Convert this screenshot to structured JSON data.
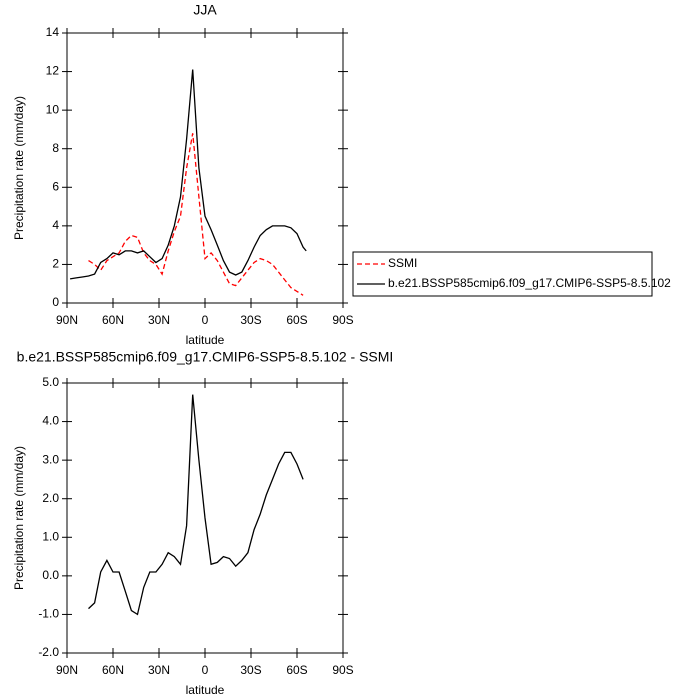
{
  "chart_data": [
    {
      "type": "line",
      "title": "JJA",
      "xlabel": "latitude",
      "ylabel": "Precipitation rate (mm/day)",
      "x": [
        88,
        84,
        80,
        76,
        72,
        68,
        64,
        60,
        56,
        52,
        48,
        44,
        40,
        36,
        32,
        28,
        24,
        20,
        16,
        12,
        8,
        4,
        0,
        -4,
        -8,
        -12,
        -16,
        -20,
        -24,
        -28,
        -32,
        -36,
        -40,
        -44,
        -48,
        -52,
        -56,
        -60,
        -64,
        -66
      ],
      "xlim": [
        90,
        -90
      ],
      "xticks": [
        {
          "value": 90,
          "label": "90N"
        },
        {
          "value": 60,
          "label": "60N"
        },
        {
          "value": 30,
          "label": "30N"
        },
        0,
        {
          "value": -30,
          "label": "30S"
        },
        {
          "value": -60,
          "label": "60S"
        },
        {
          "value": -90,
          "label": "90S"
        }
      ],
      "ylim": [
        0,
        14
      ],
      "yticks": [
        0,
        2,
        4,
        6,
        8,
        10,
        12,
        14
      ],
      "legend": "outside-right",
      "series": [
        {
          "name": "SSMI",
          "color": "#ff0000",
          "style": "dashed",
          "values": [
            null,
            null,
            null,
            2.2,
            2.0,
            1.7,
            2.2,
            2.4,
            2.6,
            3.2,
            3.5,
            3.4,
            2.6,
            2.2,
            2.0,
            1.5,
            2.7,
            3.7,
            4.5,
            7.0,
            8.8,
            5.5,
            2.3,
            2.6,
            2.2,
            1.6,
            1.0,
            0.9,
            1.3,
            1.7,
            2.1,
            2.3,
            2.2,
            2.0,
            1.6,
            1.2,
            0.8,
            0.6,
            0.4,
            null
          ]
        },
        {
          "name": "b.e21.BSSP585cmip6.f09_g17.CMIP6-SSP5-8.5.102",
          "color": "#000000",
          "style": "solid",
          "values": [
            1.25,
            1.3,
            1.35,
            1.4,
            1.5,
            2.1,
            2.3,
            2.6,
            2.5,
            2.7,
            2.7,
            2.6,
            2.7,
            2.4,
            2.1,
            2.3,
            3.0,
            4.0,
            5.5,
            8.5,
            12.1,
            7.0,
            4.5,
            3.8,
            3.0,
            2.2,
            1.6,
            1.45,
            1.6,
            2.2,
            2.9,
            3.5,
            3.8,
            4.0,
            4.0,
            4.0,
            3.9,
            3.6,
            2.9,
            2.7
          ]
        }
      ]
    },
    {
      "type": "line",
      "title": "b.e21.BSSP585cmip6.f09_g17.CMIP6-SSP5-8.5.102 - SSMI",
      "xlabel": "latitude",
      "ylabel": "Precipitation rate (mm/day)",
      "x": [
        88,
        84,
        80,
        76,
        72,
        68,
        64,
        60,
        56,
        52,
        48,
        44,
        40,
        36,
        32,
        28,
        24,
        20,
        16,
        12,
        8,
        4,
        0,
        -4,
        -8,
        -12,
        -16,
        -20,
        -24,
        -28,
        -32,
        -36,
        -40,
        -44,
        -48,
        -52,
        -56,
        -60,
        -64,
        -66
      ],
      "xlim": [
        90,
        -90
      ],
      "xticks": [
        {
          "value": 90,
          "label": "90N"
        },
        {
          "value": 60,
          "label": "60N"
        },
        {
          "value": 30,
          "label": "30N"
        },
        0,
        {
          "value": -30,
          "label": "30S"
        },
        {
          "value": -60,
          "label": "60S"
        },
        {
          "value": -90,
          "label": "90S"
        }
      ],
      "ylim": [
        -2,
        5
      ],
      "yticks": [
        {
          "value": -2,
          "label": "-2.0"
        },
        {
          "value": -1,
          "label": "-1.0"
        },
        {
          "value": 0,
          "label": "0.0"
        },
        {
          "value": 1,
          "label": "1.0"
        },
        {
          "value": 2,
          "label": "2.0"
        },
        {
          "value": 3,
          "label": "3.0"
        },
        {
          "value": 4,
          "label": "4.0"
        },
        {
          "value": 5,
          "label": "5.0"
        }
      ],
      "series": [
        {
          "color": "#000000",
          "style": "solid",
          "values": [
            null,
            null,
            null,
            -0.85,
            -0.7,
            0.1,
            0.4,
            0.1,
            0.1,
            -0.4,
            -0.9,
            -1.0,
            -0.3,
            0.1,
            0.1,
            0.3,
            0.6,
            0.5,
            0.3,
            1.3,
            4.7,
            3.0,
            1.5,
            0.3,
            0.35,
            0.5,
            0.45,
            0.25,
            0.4,
            0.6,
            1.2,
            1.6,
            2.1,
            2.5,
            2.9,
            3.2,
            3.2,
            2.9,
            2.5,
            null
          ]
        }
      ]
    }
  ]
}
